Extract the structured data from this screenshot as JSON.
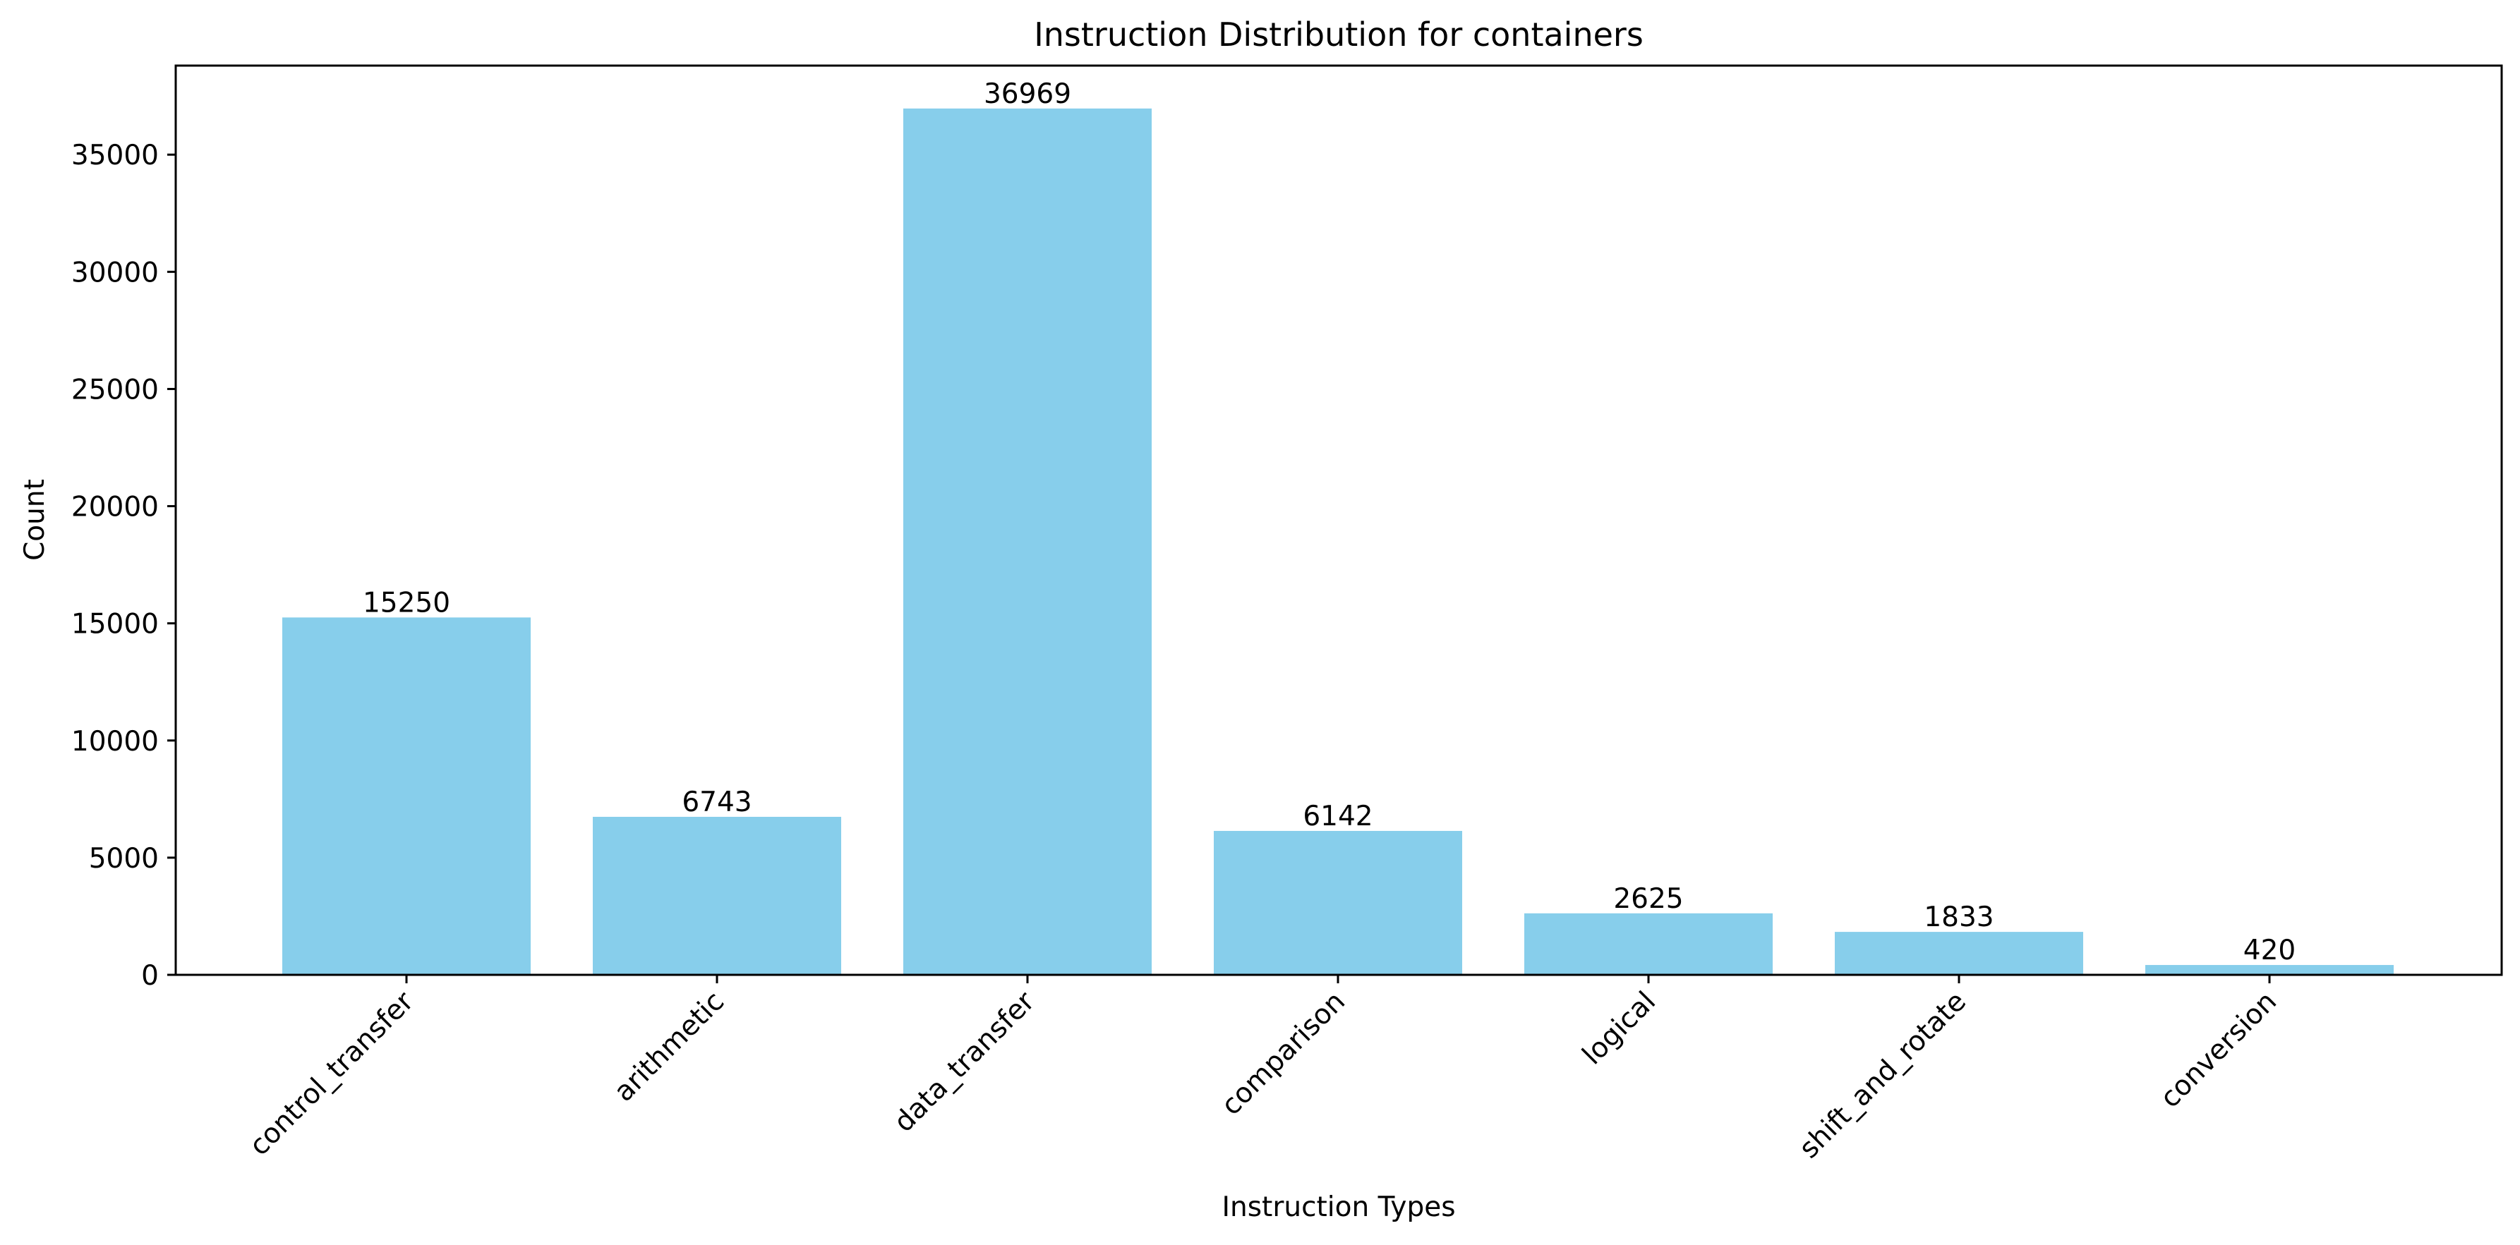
{
  "chart_data": {
    "type": "bar",
    "title": "Instruction Distribution for containers",
    "xlabel": "Instruction Types",
    "ylabel": "Count",
    "categories": [
      "control_transfer",
      "arithmetic",
      "data_transfer",
      "comparison",
      "logical",
      "shift_and_rotate",
      "conversion"
    ],
    "values": [
      15250,
      6743,
      36969,
      6142,
      2625,
      1833,
      420
    ],
    "data_labels": [
      "15250",
      "6743",
      "36969",
      "6142",
      "2625",
      "1833",
      "420"
    ],
    "ylim": [
      0,
      38800
    ],
    "yticks": [
      0,
      5000,
      10000,
      15000,
      20000,
      25000,
      30000,
      35000
    ],
    "ytick_labels": [
      "0",
      "5000",
      "10000",
      "15000",
      "20000",
      "25000",
      "30000",
      "35000"
    ],
    "bar_color": "#87ceeb",
    "grid": false,
    "legend": "none"
  }
}
